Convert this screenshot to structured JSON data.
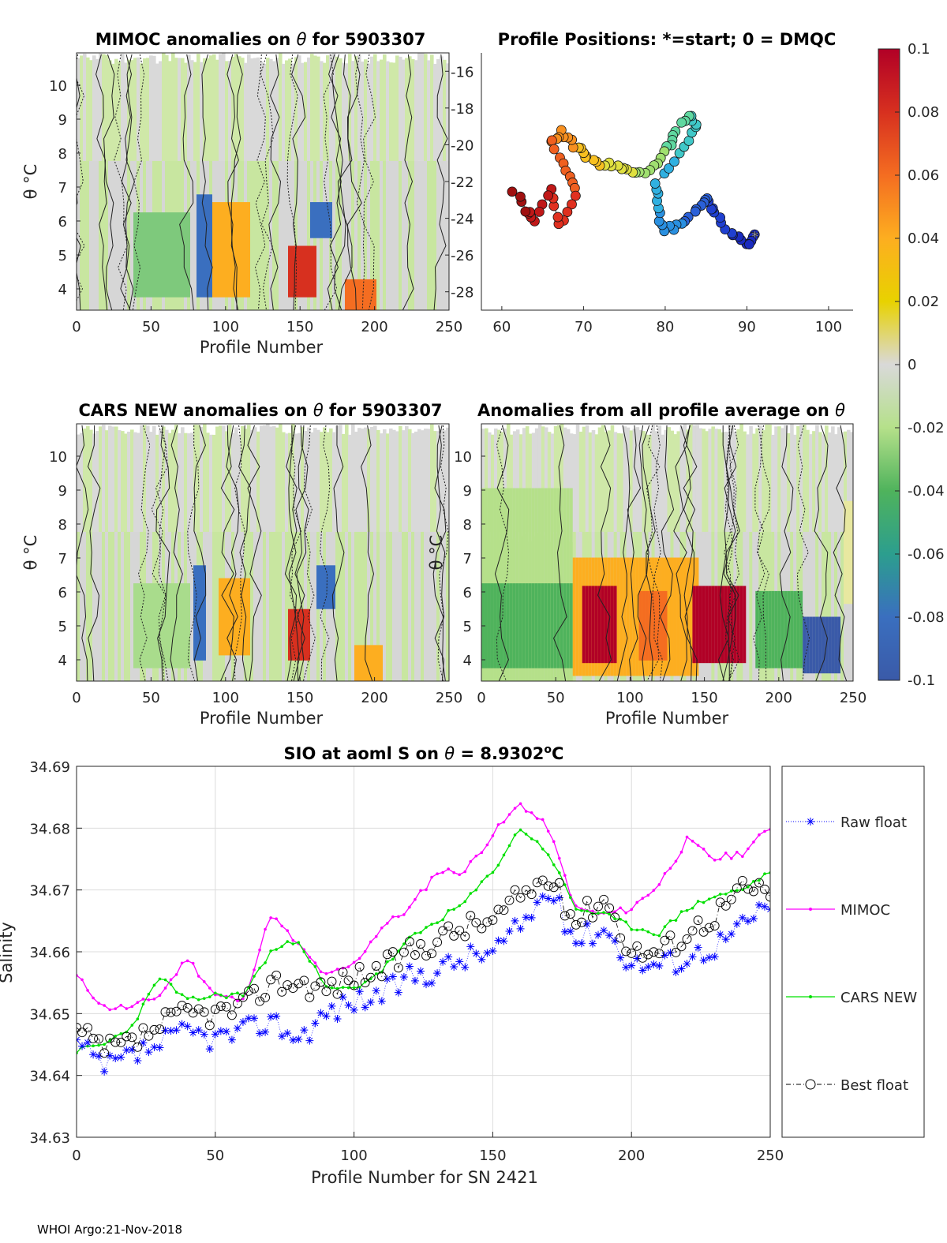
{
  "footer": "WHOI Argo:21-Nov-2018",
  "colorbar": {
    "ticks": [
      "0.1",
      "0.08",
      "0.06",
      "0.04",
      "0.02",
      "0",
      "-0.02",
      "-0.04",
      "-0.06",
      "-0.08",
      "-0.1"
    ],
    "colors": [
      "#b10026",
      "#d7301f",
      "#f46d21",
      "#fdae20",
      "#e8d200",
      "#d9d9d9",
      "#b5e08a",
      "#4fb35c",
      "#2c9e8e",
      "#3a6fbf",
      "#3a5aa8"
    ]
  },
  "panel1": {
    "title_pre": "MIMOC anomalies on ",
    "title_theta": "θ",
    "title_post": "  for 5903307",
    "ylabel": "θ °C",
    "xlabel": "Profile Number",
    "xticks": [
      "0",
      "50",
      "100",
      "150",
      "200",
      "250"
    ],
    "yticks": [
      "10",
      "9",
      "8",
      "7",
      "6",
      "5",
      "4"
    ]
  },
  "panel2": {
    "title": "Profile Positions: *=start; 0 = DMQC",
    "xticks": [
      "60",
      "70",
      "80",
      "90",
      "100"
    ],
    "yticks": [
      "-16",
      "-18",
      "-20",
      "-22",
      "-24",
      "-26",
      "-28"
    ]
  },
  "panel3": {
    "title_pre": "CARS NEW anomalies on ",
    "title_theta": "θ",
    "title_post": " for 5903307",
    "ylabel": "θ °C",
    "xlabel": "Profile Number",
    "xticks": [
      "0",
      "50",
      "100",
      "150",
      "200",
      "250"
    ],
    "yticks": [
      "10",
      "9",
      "8",
      "7",
      "6",
      "5",
      "4"
    ]
  },
  "panel4": {
    "title_pre": "Anomalies from all profile average on ",
    "title_theta": "θ",
    "ylabel": "θ °C",
    "xlabel": "Profile Number",
    "xticks": [
      "0",
      "50",
      "100",
      "150",
      "200",
      "250"
    ],
    "yticks": [
      "10",
      "9",
      "8",
      "7",
      "6",
      "5",
      "4"
    ]
  },
  "chart_data": [
    {
      "type": "line",
      "title": "SIO at aoml S on θ = 8.9302°C",
      "title_pre": "SIO at aoml S on ",
      "title_theta": "θ",
      "title_value": " = 8.9302",
      "title_unit": "o",
      "title_c": "C",
      "xlabel": "Profile Number for SN 2421",
      "ylabel": "Salinity",
      "xlim": [
        0,
        250
      ],
      "ylim": [
        34.63,
        34.69
      ],
      "xticks": [
        "0",
        "50",
        "100",
        "150",
        "200",
        "250"
      ],
      "yticks": [
        "34.69",
        "34.68",
        "34.67",
        "34.66",
        "34.65",
        "34.64",
        "34.63"
      ],
      "x": [
        0,
        10,
        20,
        30,
        40,
        50,
        60,
        70,
        80,
        90,
        100,
        110,
        120,
        130,
        140,
        150,
        160,
        170,
        180,
        190,
        200,
        210,
        220,
        230,
        240,
        250
      ],
      "series": [
        {
          "name": "Raw float",
          "values": [
            34.645,
            34.641,
            34.643,
            34.645,
            34.647,
            34.646,
            34.647,
            34.649,
            34.646,
            34.65,
            34.652,
            34.653,
            34.656,
            34.657,
            34.659,
            34.66,
            34.664,
            34.67,
            34.662,
            34.664,
            34.658,
            34.658,
            34.659,
            34.661,
            34.664,
            34.668
          ]
        },
        {
          "name": "MIMOC",
          "values": [
            34.656,
            34.651,
            34.651,
            34.653,
            34.659,
            34.653,
            34.652,
            34.666,
            34.661,
            34.656,
            34.658,
            34.664,
            34.667,
            34.673,
            34.673,
            34.679,
            34.684,
            34.68,
            34.667,
            34.666,
            34.667,
            34.671,
            34.678,
            34.675,
            34.676,
            34.68
          ]
        },
        {
          "name": "CARS NEW",
          "values": [
            34.644,
            34.645,
            34.648,
            34.656,
            34.652,
            34.653,
            34.653,
            34.66,
            34.662,
            34.654,
            34.654,
            34.657,
            34.662,
            34.665,
            34.668,
            34.673,
            34.68,
            34.676,
            34.667,
            34.666,
            34.664,
            34.663,
            34.667,
            34.669,
            34.67,
            34.673
          ]
        },
        {
          "name": "Best float",
          "values": [
            34.647,
            34.644,
            34.645,
            34.648,
            34.65,
            34.65,
            34.651,
            34.655,
            34.655,
            34.654,
            34.656,
            34.657,
            34.66,
            34.662,
            34.664,
            34.665,
            34.669,
            34.672,
            34.665,
            34.669,
            34.66,
            34.66,
            34.663,
            34.666,
            34.67,
            34.67
          ]
        }
      ],
      "legend": [
        "Raw float",
        "MIMOC",
        "CARS NEW",
        "Best float"
      ],
      "colors": {
        "raw": "#0000ff",
        "mimoc": "#ff00ff",
        "cars": "#00e000",
        "best": "#000000"
      }
    },
    {
      "type": "scatter",
      "title": "Profile Positions: *=start; 0 = DMQC",
      "x": [
        91,
        90,
        88,
        86,
        85,
        84,
        82,
        80,
        79,
        79,
        82,
        84,
        83,
        81,
        80,
        78,
        76,
        74,
        72,
        70,
        69,
        67,
        66,
        68,
        69,
        67,
        66,
        64,
        63,
        61
      ],
      "y": [
        -25.0,
        -25.4,
        -24.8,
        -23.8,
        -23.0,
        -23.4,
        -24.4,
        -24.6,
        -23.5,
        -22.0,
        -20.6,
        -19.0,
        -18.3,
        -19.5,
        -20.4,
        -21.5,
        -21.4,
        -21.2,
        -21.0,
        -20.6,
        -20.0,
        -19.3,
        -19.9,
        -21.5,
        -22.8,
        -24.4,
        -22.4,
        -24.2,
        -23.5,
        -22.4
      ],
      "xlim": [
        57.5,
        103
      ],
      "ylim": [
        -29,
        -15
      ]
    }
  ]
}
